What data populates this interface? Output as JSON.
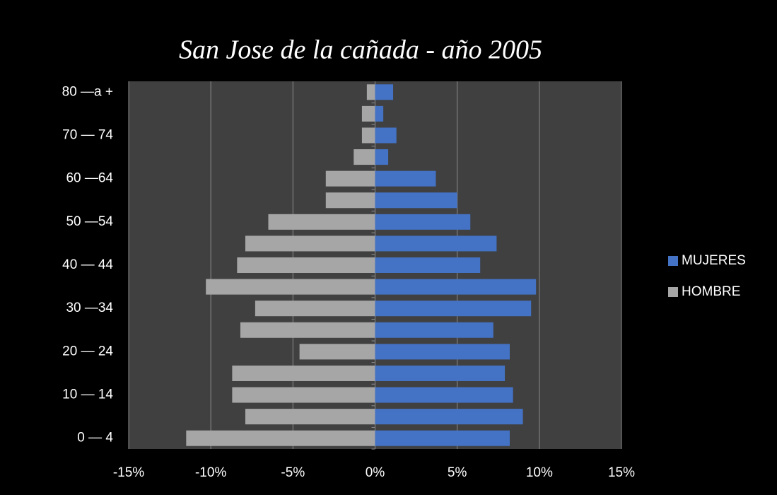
{
  "chart_data": {
    "type": "bar",
    "orientation": "horizontal",
    "title": "San Jose de la cañada -  año 2005",
    "categories": [
      "0 — 4",
      null,
      "10 — 14",
      null,
      "20 — 24",
      null,
      "30 —34",
      null,
      "40  — 44",
      null,
      "50 —54",
      null,
      "60 —64",
      null,
      "70 — 74",
      null,
      "80 —a +"
    ],
    "series": [
      {
        "name": "MUJERES",
        "color": "#4472c4",
        "values": [
          8.2,
          9.0,
          8.4,
          7.9,
          8.2,
          7.2,
          9.5,
          9.8,
          6.4,
          7.4,
          5.8,
          5.0,
          3.7,
          0.8,
          1.3,
          0.5,
          1.1
        ]
      },
      {
        "name": "HOMBRE",
        "color": "#a6a6a6",
        "values": [
          -11.5,
          -7.9,
          -8.7,
          -8.7,
          -4.6,
          -8.2,
          -7.3,
          -10.3,
          -8.4,
          -7.9,
          -6.5,
          -3.0,
          -3.0,
          -1.3,
          -0.8,
          -0.8,
          -0.5
        ]
      }
    ],
    "xlim": [
      -15,
      15
    ],
    "xticks": [
      {
        "value": -15,
        "label": "-15%"
      },
      {
        "value": -10,
        "label": "-10%"
      },
      {
        "value": -5,
        "label": "-5%"
      },
      {
        "value": 0,
        "label": "0%"
      },
      {
        "value": 5,
        "label": "5%"
      },
      {
        "value": 10,
        "label": "10%"
      },
      {
        "value": 15,
        "label": "15%"
      }
    ],
    "grid": true,
    "legend": "right"
  }
}
